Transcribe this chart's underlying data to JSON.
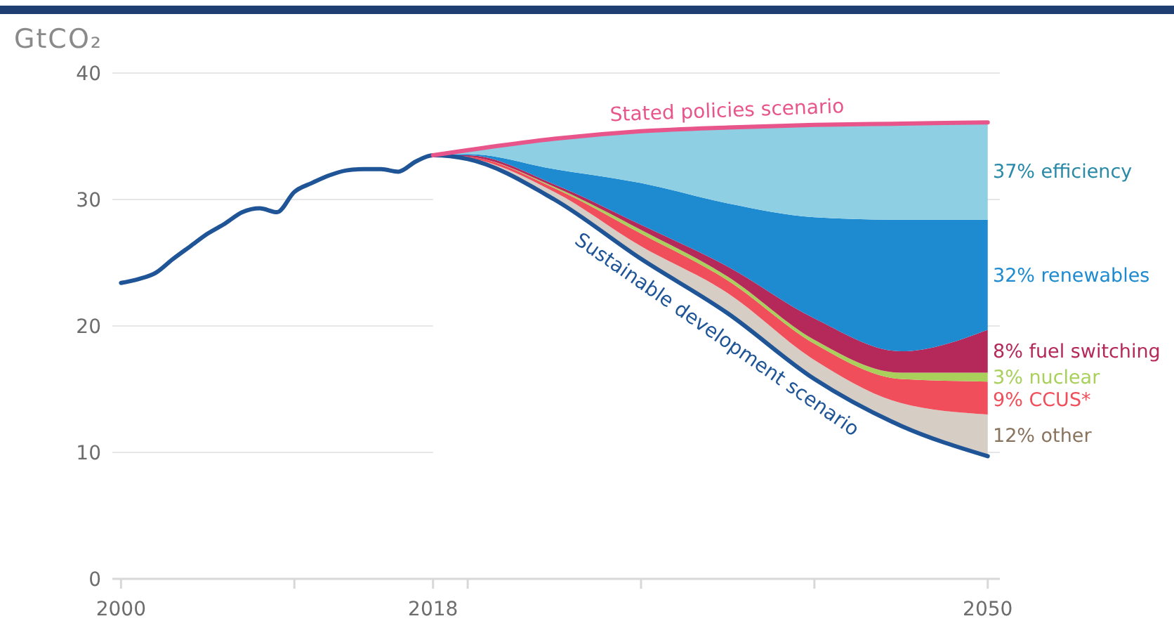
{
  "chart_data": {
    "type": "area",
    "ylabel": "GtCO₂",
    "xlim": [
      1999.5,
      2050.7
    ],
    "ylim": [
      0,
      40
    ],
    "xticks": [
      2000,
      {
        "value": 2010,
        "label": null
      },
      2018,
      {
        "value": 2020,
        "label": null
      },
      {
        "value": 2030,
        "label": null
      },
      {
        "value": 2040,
        "label": null
      },
      2050
    ],
    "yticks": [
      0,
      10,
      20,
      30,
      40
    ],
    "grid": "y",
    "stacked": true,
    "series": [
      {
        "color": "#ffffff",
        "x": [
          2018,
          2020,
          2025,
          2030,
          2035,
          2040,
          2045,
          2050
        ],
        "values": [
          33.5,
          33.2,
          30.0,
          25.3,
          21.0,
          15.8,
          12.1,
          9.7
        ]
      },
      {
        "name": "12% other",
        "color": "#d6cdc4",
        "x": [
          2018,
          2020,
          2025,
          2030,
          2035,
          2040,
          2045,
          2050
        ],
        "values": [
          0,
          0.1,
          0.6,
          1.0,
          1.6,
          1.5,
          1.8,
          3.3
        ]
      },
      {
        "name": "9% CCUS*",
        "color": "#f04e5a",
        "x": [
          2018,
          2020,
          2025,
          2030,
          2035,
          2040,
          2045,
          2050
        ],
        "values": [
          0,
          0.1,
          0.3,
          1.0,
          1.0,
          1.3,
          1.9,
          2.6
        ]
      },
      {
        "name": "3% nuclear",
        "color": "#a8d05a",
        "x": [
          2018,
          2020,
          2025,
          2030,
          2035,
          2040,
          2045,
          2050
        ],
        "values": [
          0,
          0,
          0.1,
          0.3,
          0.3,
          0.3,
          0.5,
          0.7
        ]
      },
      {
        "name": "8% fuel switching",
        "color": "#b5285a",
        "x": [
          2018,
          2020,
          2025,
          2030,
          2035,
          2040,
          2045,
          2050
        ],
        "values": [
          0,
          0.1,
          0.2,
          0.4,
          0.8,
          1.7,
          1.7,
          3.4
        ]
      },
      {
        "name": "32% renewables",
        "color": "#1e8bd0",
        "x": [
          2018,
          2020,
          2025,
          2030,
          2035,
          2040,
          2045,
          2050
        ],
        "values": [
          0,
          0.1,
          1.2,
          3.3,
          5.0,
          8.0,
          10.4,
          8.7
        ]
      },
      {
        "name": "37% efficiency",
        "color": "#8ecfe3",
        "x": [
          2018,
          2020,
          2025,
          2030,
          2035,
          2040,
          2045,
          2050
        ],
        "values": [
          0,
          0.3,
          2.4,
          4.1,
          6.0,
          7.4,
          7.6,
          7.7
        ]
      },
      {
        "type": "line",
        "name": "Sustainable development scenario",
        "color": "#1f5597",
        "x": [
          2000,
          2001,
          2002,
          2003,
          2004,
          2005,
          2006,
          2007,
          2008,
          2009,
          2010,
          2011,
          2012,
          2013,
          2014,
          2015,
          2016,
          2017,
          2018,
          2020,
          2025,
          2030,
          2035,
          2040,
          2045,
          2050
        ],
        "values": [
          23.4,
          23.7,
          24.2,
          25.3,
          26.3,
          27.3,
          28.1,
          29.0,
          29.3,
          29.0,
          30.6,
          31.3,
          31.9,
          32.3,
          32.4,
          32.4,
          32.2,
          33.0,
          33.5,
          33.2,
          30.0,
          25.3,
          21.0,
          15.8,
          12.1,
          9.7
        ]
      },
      {
        "type": "line",
        "name": "Stated policies scenario",
        "color": "#e8558a",
        "x": [
          2018,
          2020,
          2025,
          2030,
          2035,
          2040,
          2045,
          2050
        ],
        "values": [
          33.5,
          33.9,
          34.8,
          35.4,
          35.7,
          35.9,
          36.0,
          36.1
        ]
      }
    ]
  }
}
